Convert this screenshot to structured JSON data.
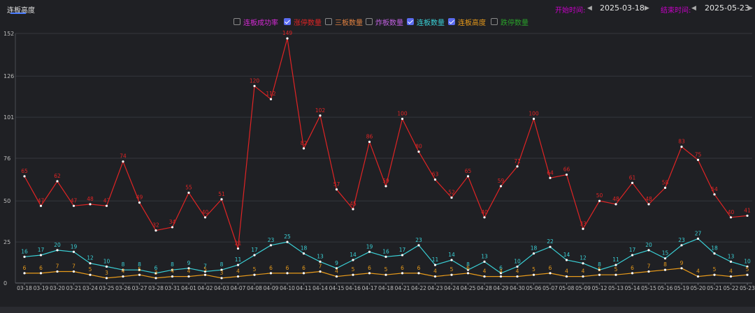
{
  "tab": {
    "label": "连板高度"
  },
  "dates": {
    "start_label": "开始时间:",
    "start_value": "2025-03-18",
    "end_label": "结束时间:",
    "end_value": "2025-05-23"
  },
  "legend": [
    {
      "label": "连板成功率",
      "checked": false,
      "color": "#d62ad6"
    },
    {
      "label": "涨停数量",
      "checked": true,
      "color": "#e02424"
    },
    {
      "label": "三板数量",
      "checked": false,
      "color": "#e08040"
    },
    {
      "label": "炸板数量",
      "checked": false,
      "color": "#c060e0"
    },
    {
      "label": "连板数量",
      "checked": true,
      "color": "#3ad0d6"
    },
    {
      "label": "连板高度",
      "checked": true,
      "color": "#e89a1a"
    },
    {
      "label": "跌停数量",
      "checked": false,
      "color": "#2aa02a"
    }
  ],
  "chart_data": {
    "type": "line",
    "y_ticks": [
      0,
      25,
      50,
      76,
      101,
      126,
      152
    ],
    "ylim": [
      0,
      152
    ],
    "grid": true,
    "x": [
      "03-18",
      "03-19",
      "03-20",
      "03-21",
      "03-24",
      "03-25",
      "03-26",
      "03-27",
      "03-28",
      "03-31",
      "04-01",
      "04-02",
      "04-03",
      "04-07",
      "04-08",
      "04-09",
      "04-10",
      "04-11",
      "04-14",
      "04-15",
      "04-16",
      "04-17",
      "04-18",
      "04-21",
      "04-22",
      "04-23",
      "04-24",
      "04-25",
      "04-28",
      "04-29",
      "04-30",
      "05-06",
      "05-07",
      "05-08",
      "05-09",
      "05-12",
      "05-13",
      "05-14",
      "05-15",
      "05-16",
      "05-19",
      "05-20",
      "05-21",
      "05-22",
      "05-23"
    ],
    "series": [
      {
        "name": "涨停数量",
        "color": "#e02424",
        "label_color": "#e02424",
        "values": [
          65,
          47,
          62,
          47,
          48,
          47,
          74,
          49,
          32,
          34,
          55,
          40,
          51,
          21,
          120,
          112,
          149,
          82,
          102,
          57,
          45,
          86,
          59,
          100,
          80,
          63,
          52,
          65,
          40,
          59,
          71,
          100,
          64,
          66,
          33,
          50,
          48,
          61,
          48,
          58,
          83,
          75,
          54,
          40,
          41
        ]
      },
      {
        "name": "连板数量",
        "color": "#3ad0d6",
        "label_color": "#3ad0d6",
        "values": [
          16,
          17,
          20,
          19,
          12,
          10,
          8,
          8,
          6,
          8,
          9,
          7,
          8,
          11,
          17,
          23,
          25,
          18,
          13,
          9,
          14,
          19,
          16,
          17,
          23,
          11,
          14,
          8,
          13,
          6,
          10,
          18,
          22,
          14,
          12,
          8,
          11,
          17,
          20,
          15,
          23,
          27,
          18,
          13,
          10
        ]
      },
      {
        "name": "连板高度",
        "color": "#e89a1a",
        "label_color": "#e89a1a",
        "values": [
          6,
          6,
          7,
          7,
          5,
          3,
          4,
          5,
          3,
          4,
          4,
          5,
          3,
          4,
          5,
          6,
          6,
          6,
          7,
          4,
          5,
          6,
          5,
          6,
          6,
          4,
          5,
          6,
          4,
          4,
          4,
          5,
          6,
          4,
          4,
          5,
          5,
          6,
          7,
          8,
          9,
          4,
          5,
          4,
          5
        ]
      }
    ]
  }
}
